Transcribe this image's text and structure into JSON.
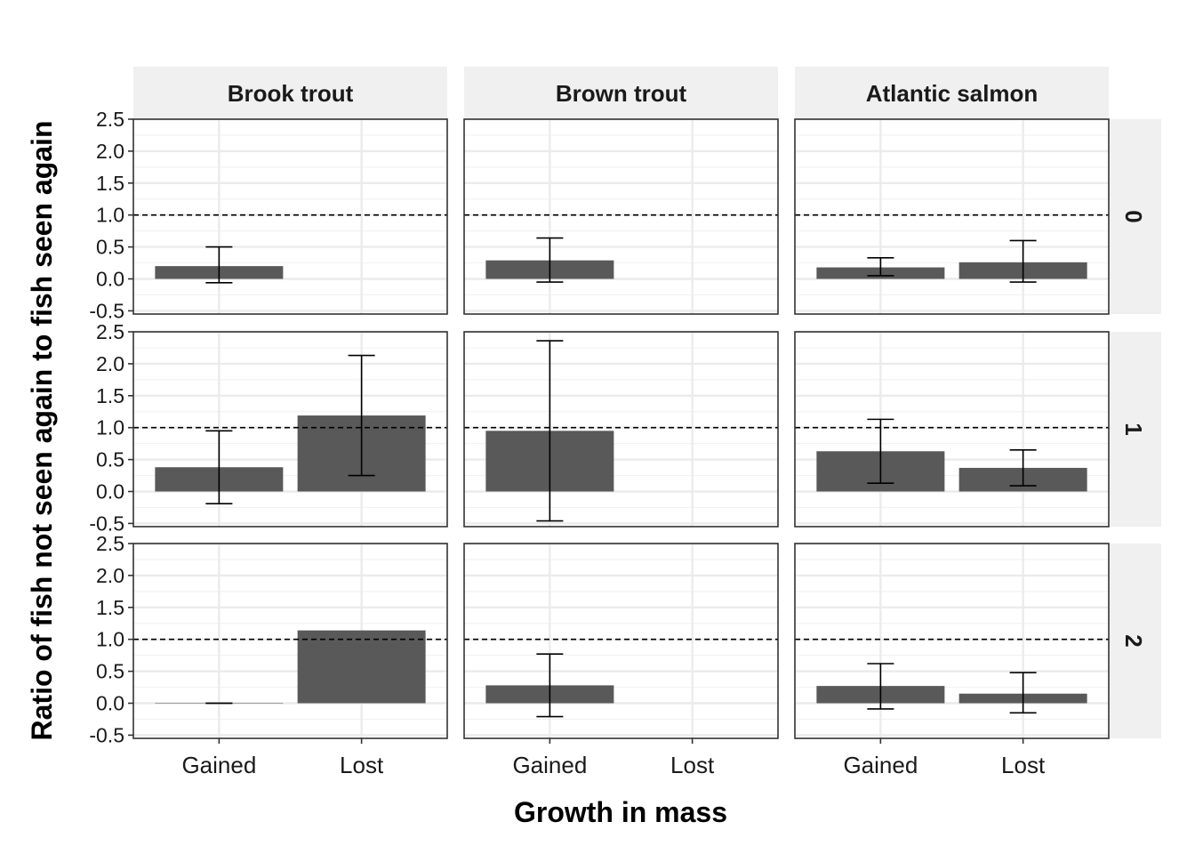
{
  "chart_data": {
    "type": "bar",
    "xlabel": "Growth in mass",
    "ylabel": "Ratio of fish not seen again to fish seen again",
    "categories": [
      "Gained",
      "Lost"
    ],
    "column_facets": [
      "Brook trout",
      "Brown trout",
      "Atlantic salmon"
    ],
    "row_facets": [
      "0",
      "1",
      "2"
    ],
    "ylim": [
      -0.55,
      2.5
    ],
    "yticks": [
      "-0.5",
      "0.0",
      "0.5",
      "1.0",
      "1.5",
      "2.0",
      "2.5"
    ],
    "reference_line": 1.0,
    "bar_color": "#595959",
    "strip_color": "#f0f0f0",
    "grid": true,
    "panels": [
      {
        "row": "0",
        "column": "Brook trout",
        "values": [
          0.2,
          null
        ],
        "lower": [
          -0.06,
          null
        ],
        "upper": [
          0.5,
          null
        ]
      },
      {
        "row": "0",
        "column": "Brown trout",
        "values": [
          0.29,
          null
        ],
        "lower": [
          -0.05,
          null
        ],
        "upper": [
          0.64,
          null
        ]
      },
      {
        "row": "0",
        "column": "Atlantic salmon",
        "values": [
          0.18,
          0.26
        ],
        "lower": [
          0.05,
          -0.05
        ],
        "upper": [
          0.33,
          0.6
        ]
      },
      {
        "row": "1",
        "column": "Brook trout",
        "values": [
          0.38,
          1.19
        ],
        "lower": [
          -0.19,
          0.25
        ],
        "upper": [
          0.95,
          2.13
        ]
      },
      {
        "row": "1",
        "column": "Brown trout",
        "values": [
          0.95,
          null
        ],
        "lower": [
          -0.46,
          null
        ],
        "upper": [
          2.36,
          null
        ]
      },
      {
        "row": "1",
        "column": "Atlantic salmon",
        "values": [
          0.63,
          0.37
        ],
        "lower": [
          0.13,
          0.09
        ],
        "upper": [
          1.13,
          0.65
        ]
      },
      {
        "row": "2",
        "column": "Brook trout",
        "values": [
          0.0,
          1.14
        ],
        "lower": [
          0.0,
          null
        ],
        "upper": [
          0.0,
          null
        ]
      },
      {
        "row": "2",
        "column": "Brown trout",
        "values": [
          0.28,
          null
        ],
        "lower": [
          -0.21,
          null
        ],
        "upper": [
          0.77,
          null
        ]
      },
      {
        "row": "2",
        "column": "Atlantic salmon",
        "values": [
          0.27,
          0.15
        ],
        "lower": [
          -0.09,
          -0.15
        ],
        "upper": [
          0.62,
          0.48
        ]
      }
    ]
  }
}
